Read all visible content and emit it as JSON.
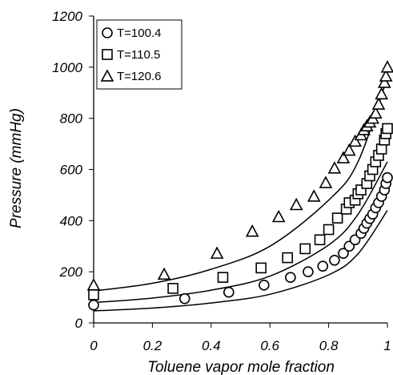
{
  "chart_data": {
    "type": "scatter",
    "title": "",
    "xlabel": "Toluene vapor mole fraction",
    "ylabel": "Pressure  (mmHg)",
    "xlim": [
      0,
      1
    ],
    "ylim": [
      0,
      1200
    ],
    "x_ticks": [
      "0",
      "0.2",
      "0.4",
      "0.6",
      "0.8",
      "1"
    ],
    "y_ticks": [
      "0",
      "200",
      "400",
      "600",
      "800",
      "1000",
      "1200"
    ],
    "grid": false,
    "legend_position": "top-left",
    "series": [
      {
        "name": "T=100.4",
        "marker": "circle",
        "points": [
          [
            0,
            70
          ],
          [
            0.31,
            95
          ],
          [
            0.46,
            120
          ],
          [
            0.58,
            148
          ],
          [
            0.67,
            178
          ],
          [
            0.73,
            200
          ],
          [
            0.78,
            222
          ],
          [
            0.82,
            245
          ],
          [
            0.85,
            272
          ],
          [
            0.87,
            300
          ],
          [
            0.89,
            325
          ],
          [
            0.91,
            350
          ],
          [
            0.92,
            370
          ],
          [
            0.93,
            390
          ],
          [
            0.94,
            408
          ],
          [
            0.95,
            425
          ],
          [
            0.96,
            450
          ],
          [
            0.97,
            470
          ],
          [
            0.98,
            495
          ],
          [
            0.99,
            520
          ],
          [
            0.995,
            545
          ],
          [
            1.0,
            568
          ]
        ],
        "fit": [
          [
            0,
            47
          ],
          [
            0.2,
            58
          ],
          [
            0.4,
            78
          ],
          [
            0.6,
            112
          ],
          [
            0.8,
            188
          ],
          [
            0.9,
            270
          ],
          [
            1.0,
            440
          ]
        ]
      },
      {
        "name": "T=110.5",
        "marker": "square",
        "points": [
          [
            0,
            110
          ],
          [
            0.27,
            135
          ],
          [
            0.44,
            178
          ],
          [
            0.57,
            215
          ],
          [
            0.66,
            255
          ],
          [
            0.72,
            290
          ],
          [
            0.77,
            325
          ],
          [
            0.8,
            365
          ],
          [
            0.83,
            410
          ],
          [
            0.86,
            445
          ],
          [
            0.87,
            470
          ],
          [
            0.89,
            480
          ],
          [
            0.9,
            505
          ],
          [
            0.91,
            520
          ],
          [
            0.93,
            545
          ],
          [
            0.94,
            575
          ],
          [
            0.95,
            600
          ],
          [
            0.96,
            630
          ],
          [
            0.97,
            655
          ],
          [
            0.98,
            680
          ],
          [
            0.99,
            715
          ],
          [
            0.995,
            740
          ],
          [
            1.0,
            760
          ]
        ],
        "fit": [
          [
            0,
            80
          ],
          [
            0.2,
            97
          ],
          [
            0.4,
            128
          ],
          [
            0.6,
            183
          ],
          [
            0.8,
            305
          ],
          [
            0.9,
            425
          ],
          [
            1.0,
            630
          ]
        ]
      },
      {
        "name": "T=120.6",
        "marker": "triangle",
        "points": [
          [
            0,
            148
          ],
          [
            0.24,
            190
          ],
          [
            0.42,
            272
          ],
          [
            0.54,
            358
          ],
          [
            0.63,
            415
          ],
          [
            0.69,
            462
          ],
          [
            0.75,
            495
          ],
          [
            0.79,
            548
          ],
          [
            0.82,
            605
          ],
          [
            0.85,
            645
          ],
          [
            0.87,
            675
          ],
          [
            0.89,
            710
          ],
          [
            0.91,
            735
          ],
          [
            0.92,
            755
          ],
          [
            0.93,
            770
          ],
          [
            0.94,
            785
          ],
          [
            0.95,
            800
          ],
          [
            0.96,
            820
          ],
          [
            0.97,
            855
          ],
          [
            0.98,
            895
          ],
          [
            0.99,
            940
          ],
          [
            0.995,
            965
          ],
          [
            1.0,
            1000
          ]
        ],
        "fit": [
          [
            0,
            125
          ],
          [
            0.2,
            155
          ],
          [
            0.4,
            210
          ],
          [
            0.6,
            300
          ],
          [
            0.8,
            480
          ],
          [
            0.9,
            630
          ],
          [
            1.0,
            960
          ]
        ]
      }
    ]
  }
}
